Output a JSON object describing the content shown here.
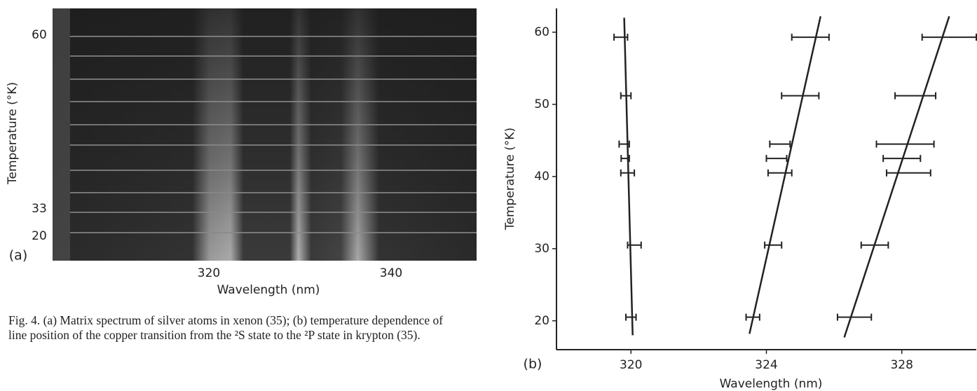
{
  "panel_a": {
    "label": "(a)",
    "ytick_labels": [
      "60",
      "33",
      "20"
    ],
    "xtick_labels": [
      "320",
      "340"
    ],
    "xlabel": "Wavelength (nm)",
    "ylabel": "Temperature (°K)"
  },
  "caption": "Fig. 4. (a) Matrix spectrum of silver atoms in xenon (35); (b) temperature dependence of line position of the copper transition from the ²S state to the ²P state in krypton (35).",
  "chart_data": {
    "type": "scatter",
    "panel_label": "(b)",
    "xlabel": "Wavelength (nm)",
    "ylabel": "Temperature (°K)",
    "xlim": [
      317.8,
      330.2
    ],
    "ylim": [
      16,
      63.3
    ],
    "xticks": [
      320,
      324,
      328
    ],
    "yticks": [
      20,
      30,
      40,
      50,
      60
    ],
    "color": "#222",
    "series": [
      {
        "y": [
          59.3,
          51.2,
          44.5,
          42.5,
          40.5,
          30.5,
          20.5
        ],
        "x": [
          319.7,
          319.85,
          319.8,
          319.83,
          319.9,
          320.1,
          320.0
        ],
        "xerr": [
          0.2,
          0.15,
          0.15,
          0.12,
          0.2,
          0.2,
          0.15
        ],
        "fit": {
          "x": [
            319.8,
            320.05
          ],
          "y": [
            62,
            18
          ]
        }
      },
      {
        "y": [
          59.3,
          51.2,
          44.5,
          42.5,
          40.5,
          30.5,
          20.5
        ],
        "x": [
          325.3,
          325.0,
          324.4,
          324.3,
          324.4,
          324.2,
          323.6
        ],
        "xerr": [
          0.55,
          0.55,
          0.3,
          0.3,
          0.35,
          0.25,
          0.2
        ],
        "fit": {
          "x": [
            325.6,
            323.5
          ],
          "y": [
            62.2,
            18.2
          ]
        }
      },
      {
        "y": [
          59.3,
          51.2,
          44.5,
          42.5,
          40.5,
          30.5,
          20.5
        ],
        "x": [
          329.4,
          328.4,
          328.1,
          328.0,
          328.2,
          327.2,
          326.6
        ],
        "xerr": [
          0.8,
          0.6,
          0.85,
          0.55,
          0.65,
          0.4,
          0.5
        ],
        "fit": {
          "x": [
            329.4,
            326.3
          ],
          "y": [
            62.2,
            17.7
          ]
        }
      }
    ]
  }
}
